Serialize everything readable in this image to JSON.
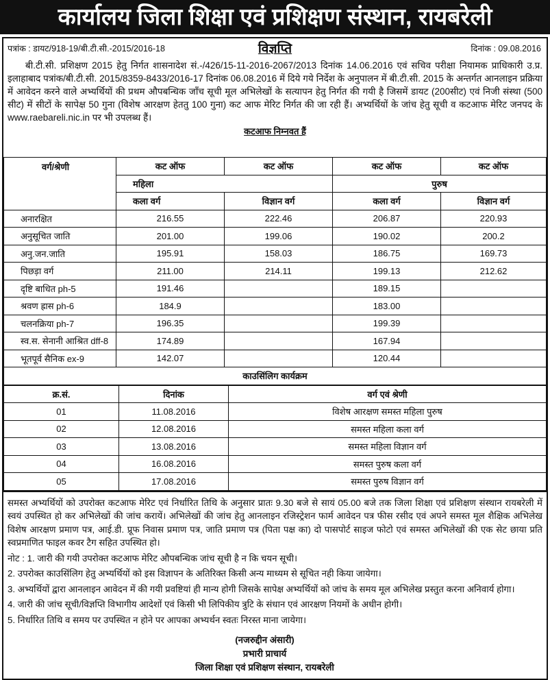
{
  "header": {
    "title": "कार्यालय जिला शिक्षा एवं प्रशिक्षण संस्थान, रायबरेली"
  },
  "notice": {
    "ref": "पत्रांक : डायट/918-19/बी.टी.सी.-2015/2016-18",
    "date": "दिनांक : 09.08.2016",
    "heading": "विज्ञप्ति",
    "intro": "बी.टी.सी. प्रशिक्षण 2015 हेतु निर्गत शासनादेश सं.-/426/15-11-2016-2067/2013 दिनांक 14.06.2016 एवं सचिव परीक्षा नियामक प्राधिकारी उ.प्र. इलाहाबाद पत्रांक/बी.टी.सी. 2015/8359-8433/2016-17 दिनांक 06.08.2016 में दिये गये निर्देश के अनुपालन में बी.टी.सी. 2015 के अन्तर्गत आनलाइन प्रक्रिया में आवेदन करने वाले अभ्यर्थियों की प्रथम औपबन्धिक जाँच सूची मूल अभिलेखों के सत्यापन हेतु निर्गत की गयी है जिसमें डायट (200सीट) एवं निजी संस्था (500 सीट) में सीटों के सापेक्ष 50 गुना (विशेष आरक्षण हेततु 100 गुना) कट आफ मेरिट निर्गत की जा रही हैं। अभ्यर्थियों के जांच हेतु सूची व कटआफ मेरिट जनपद के www.raebareli.nic.in पर भी उपलब्ध हैं।",
    "cutoff_heading": "कटआफ निम्नवत हैं"
  },
  "cutoff_table": {
    "col_category": "वर्ग/श्रेणी",
    "cut_off": [
      "कट ऑफ",
      "कट ऑफ",
      "कट ऑफ",
      "कट ऑफ"
    ],
    "female": "महिला",
    "male": "पुरुष",
    "sub": [
      "कला वर्ग",
      "विज्ञान वर्ग",
      "कला वर्ग",
      "विज्ञान वर्ग"
    ],
    "rows": [
      {
        "cat": "अनारक्षित",
        "v": [
          "216.55",
          "222.46",
          "206.87",
          "220.93"
        ]
      },
      {
        "cat": "अनुसूचित जाति",
        "v": [
          "201.00",
          "199.06",
          "190.02",
          "200.2"
        ]
      },
      {
        "cat": "अनु.जन.जाति",
        "v": [
          "195.91",
          "158.03",
          "186.75",
          "169.73"
        ]
      },
      {
        "cat": "पिछड़ा वर्ग",
        "v": [
          "211.00",
          "214.11",
          "199.13",
          "212.62"
        ]
      },
      {
        "cat": "दृष्टि बाधित ph-5",
        "v": [
          "191.46",
          "",
          "189.15",
          ""
        ]
      },
      {
        "cat": "श्रवण ह्रास ph-6",
        "v": [
          "184.9",
          "",
          "183.00",
          ""
        ]
      },
      {
        "cat": "चलनक्रिया ph-7",
        "v": [
          "196.35",
          "",
          "199.39",
          ""
        ]
      },
      {
        "cat": "स्व.स. सेनानी आश्रित dff-8",
        "v": [
          "174.89",
          "",
          "167.94",
          ""
        ]
      },
      {
        "cat": "भूतपूर्व सैनिक ex-9",
        "v": [
          "142.07",
          "",
          "120.44",
          ""
        ]
      }
    ]
  },
  "counselling": {
    "title": "काउसिंलिग कार्यक्रम",
    "headers": [
      "क्र.सं.",
      "दिनांक",
      "वर्ग एवं श्रेणी"
    ],
    "rows": [
      [
        "01",
        "11.08.2016",
        "विशेष आरक्षण समस्त महिला पुरुष"
      ],
      [
        "02",
        "12.08.2016",
        "समस्त महिला कला वर्ग"
      ],
      [
        "03",
        "13.08.2016",
        "समस्त महिला विज्ञान वर्ग"
      ],
      [
        "04",
        "16.08.2016",
        "समस्त पुरुष कला वर्ग"
      ],
      [
        "05",
        "17.08.2016",
        "समस्त पुरुष विज्ञान वर्ग"
      ]
    ]
  },
  "instructions": "समस्त अभ्यर्थियों को उपरोक्त कटआफ मेरिट एवं निर्धारित तिथि के अनुसार प्रातः 9.30 बजे से सायं 05.00 बजे तक जिला शिक्षा एवं प्रशिक्षण संस्थान रायबरेली में स्वयं उपस्थित हो कर अभिलेखों की जांच करायें। अभिलेखों की जांच हेतु आनलाइन रजिस्ट्रेशन फार्म आवेदन पत्र फीस रसीद एवं अपने समस्त मूल शैक्षिक अभिलेख विशेष आरक्षण प्रमाण पत्र, आई.डी. प्रूफ निवास प्रमाण पत्र, जाति प्रमाण पत्र (पिता पक्ष का) दो पासपोर्ट साइज फोटो एवं समस्त अभिलेखों की एक सेट छाया प्रति स्वप्रमाणित फाइल कवर टैग सहित उपस्थित हो।",
  "notes": [
    "नोट : 1. जारी की गयी उपरोक्त कटआफ मेरिट औपबन्धिक जांच सूची है  न कि चयन सूची।",
    "2.  उपरोक्त काउसिंलिग हेतु अभ्यर्थियों को इस विज्ञापन के अतिरिक्त किसी अन्य माध्यम से सूचित नही किया जायेगा।",
    "3.  अभ्यर्थियों द्वारा आनलाइन आवेदन में की गयी प्रवष्टियां ही मान्य होगी जिसके सापेक्ष अभ्यर्थियों को जांच के समय मूल अभिलेख प्रस्तुत करना अनिवार्य होगा।",
    "4.  जारी की जांच सूची/विज्ञप्ति विभागीय आदेशों एवं किसी भी लिपिकीय त्रुटि के  संधान एवं आरक्षण नियमों के अधीन होगी।",
    "5.  निर्धारित तिथि व समय पर उपस्थित न होने पर आपका अभ्यर्थन स्वतः निरस्त माना जायेगा।"
  ],
  "signature": {
    "name": "(नजरुद्दीन अंसारी)",
    "designation": "प्रभारी प्राचार्य",
    "office": "जिला शिक्षा एवं प्रशिक्षण संस्थान, रायबरेली"
  }
}
